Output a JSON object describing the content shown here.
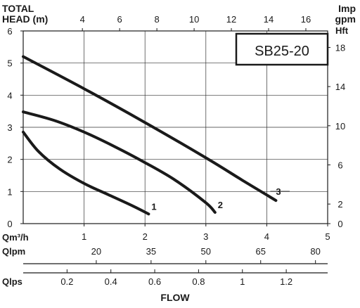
{
  "chart_data": {
    "type": "line",
    "model_label": "SB25-20",
    "top_axis_title_line1": "TOTAL",
    "top_axis_title_line2": "HEAD (m)",
    "top_axis_ticks": [
      "4",
      "6",
      "8",
      "10",
      "12",
      "14",
      "16"
    ],
    "top_right_unit_line1": "Imp",
    "top_right_unit_line2": "gpm",
    "left_axis": {
      "ylim": [
        0,
        6
      ],
      "ticks": [
        "0",
        "1",
        "2",
        "3",
        "4",
        "5",
        "6"
      ]
    },
    "right_axis": {
      "unit": "Hft",
      "ticks": [
        "0",
        "2",
        "6",
        "10",
        "14",
        "18"
      ]
    },
    "bottom_axes": {
      "qm3h": {
        "label": "Qm³/h",
        "xlim": [
          0,
          5
        ],
        "ticks": [
          "1",
          "2",
          "3",
          "4",
          "5"
        ]
      },
      "qlpm": {
        "label": "Qlpm",
        "ticks": [
          "20",
          "35",
          "50",
          "65",
          "80"
        ]
      },
      "qlps": {
        "label": "Qlps",
        "ticks": [
          "0.2",
          "0.4",
          "0.6",
          "0.8",
          "1",
          "1.2"
        ]
      }
    },
    "xlabel": "FLOW",
    "grid": true,
    "series": [
      {
        "name": "1",
        "x": [
          0,
          0.25,
          0.6,
          1.0,
          1.4,
          1.8,
          2.06
        ],
        "y": [
          2.85,
          2.25,
          1.7,
          1.25,
          0.9,
          0.55,
          0.3
        ]
      },
      {
        "name": "2",
        "x": [
          0,
          0.5,
          1.0,
          1.5,
          2.0,
          2.5,
          3.0,
          3.15
        ],
        "y": [
          3.48,
          3.22,
          2.85,
          2.4,
          1.9,
          1.35,
          0.65,
          0.35
        ]
      },
      {
        "name": "3",
        "x": [
          0,
          1.0,
          2.0,
          3.0,
          3.6,
          4.15
        ],
        "y": [
          5.2,
          4.2,
          3.15,
          2.05,
          1.35,
          0.72
        ]
      }
    ]
  }
}
